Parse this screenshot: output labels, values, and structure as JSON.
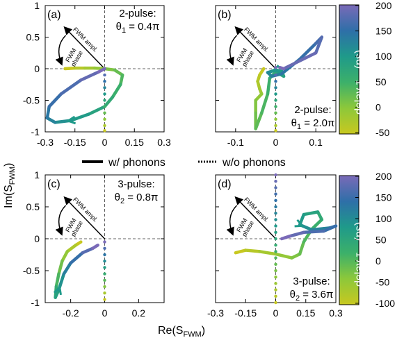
{
  "figure": {
    "ylabel": "Im(S",
    "ylabel_sub": "FWM",
    "ylabel_end": ")",
    "xlabel": "Re(S",
    "xlabel_sub": "FWM",
    "xlabel_end": ")",
    "legend": {
      "with": "w/ phonons",
      "without": "w/o phonons"
    },
    "arrow_amp": "FWM ampl.",
    "arrow_phase_1": "FWM",
    "arrow_phase_2": "phase",
    "colorbar_top": {
      "label": "delay τ",
      "sub": "12",
      "unit": " (ps)",
      "ticks": [
        "200",
        "150",
        "100",
        "50",
        "0",
        "-50"
      ]
    },
    "colorbar_bottom": {
      "label": "delay τ",
      "sub": "23",
      "unit": " (ps)",
      "ticks": [
        "200",
        "150",
        "100",
        "50",
        "0",
        "-50",
        "-100"
      ]
    }
  },
  "panels": [
    {
      "id": "a",
      "label": "(a)",
      "ann1": "2-pulse:",
      "ann2": "θ",
      "ann2_sub": "1",
      "ann2_val": " = 0.4π",
      "xticks": [
        "-0.3",
        "-0.15",
        "0",
        "0.15",
        "0.3"
      ],
      "yticks": [
        "1",
        "0.5",
        "0",
        "-0.5",
        "-1"
      ]
    },
    {
      "id": "b",
      "label": "(b)",
      "ann1": "2-pulse:",
      "ann2": "θ",
      "ann2_sub": "1",
      "ann2_val": " = 2.0π",
      "xticks": [
        "-0.1",
        "0",
        "0.1"
      ],
      "yticks": []
    },
    {
      "id": "c",
      "label": "(c)",
      "ann1": "3-pulse:",
      "ann2": "θ",
      "ann2_sub": "2",
      "ann2_val": " = 0.8π",
      "xticks": [
        "-0.2",
        "0",
        "0.2"
      ],
      "yticks": [
        "1",
        "0.5",
        "0",
        "-0.5",
        "-1"
      ]
    },
    {
      "id": "d",
      "label": "(d)",
      "ann1": "3-pulse:",
      "ann2": "θ",
      "ann2_sub": "2",
      "ann2_val": " = 3.6π",
      "xticks": [
        "-0.3",
        "-0.15",
        "0",
        "0.15",
        "0.3"
      ],
      "yticks": []
    }
  ],
  "chart_data": [
    {
      "type": "scatter",
      "panel": "a",
      "xlabel": "Re(S_FWM)",
      "ylabel": "Im(S_FWM)",
      "xlim": [
        -0.3,
        0.3
      ],
      "ylim": [
        -1,
        1
      ],
      "color_variable": "delay τ12 (ps)",
      "color_range": [
        -50,
        200
      ],
      "series": [
        {
          "name": "w/ phonons",
          "points": [
            [
              -0.2,
              0
            ],
            [
              -0.15,
              0.01
            ],
            [
              -0.1,
              0.01
            ],
            [
              -0.05,
              0.01
            ],
            [
              0,
              0
            ],
            [
              0.05,
              -0.02
            ],
            [
              0.09,
              -0.1
            ],
            [
              0.08,
              -0.25
            ],
            [
              0.04,
              -0.45
            ],
            [
              0,
              -0.6
            ],
            [
              -0.08,
              -0.72
            ],
            [
              -0.17,
              -0.82
            ],
            [
              -0.25,
              -0.85
            ],
            [
              -0.29,
              -0.78
            ],
            [
              -0.28,
              -0.6
            ],
            [
              -0.22,
              -0.4
            ],
            [
              -0.12,
              -0.18
            ],
            [
              -0.03,
              -0.05
            ],
            [
              0,
              0
            ]
          ]
        },
        {
          "name": "w/o phonons",
          "points": [
            [
              0,
              0
            ],
            [
              0,
              -0.1
            ],
            [
              0,
              -0.2
            ],
            [
              0,
              -0.3
            ],
            [
              0,
              -0.4
            ],
            [
              0,
              -0.5
            ],
            [
              0,
              -0.6
            ],
            [
              0,
              -0.7
            ],
            [
              0,
              -0.8
            ],
            [
              0,
              -0.9
            ],
            [
              0,
              -0.98
            ]
          ]
        }
      ]
    },
    {
      "type": "scatter",
      "panel": "b",
      "xlabel": "Re(S_FWM)",
      "ylabel": "Im(S_FWM)",
      "xlim": [
        -0.15,
        0.15
      ],
      "ylim": [
        -1,
        1
      ],
      "color_variable": "delay τ12 (ps)",
      "color_range": [
        -50,
        200
      ],
      "series": [
        {
          "name": "w/ phonons",
          "points": [
            [
              -0.03,
              0.0
            ],
            [
              -0.04,
              -0.1
            ],
            [
              -0.045,
              -0.2
            ],
            [
              -0.04,
              -0.32
            ],
            [
              -0.035,
              -0.4
            ],
            [
              -0.05,
              -0.5
            ],
            [
              -0.05,
              -0.7
            ],
            [
              -0.05,
              -0.95
            ],
            [
              -0.035,
              -0.7
            ],
            [
              -0.02,
              -0.4
            ],
            [
              -0.015,
              -0.15
            ],
            [
              0,
              -0.05
            ],
            [
              0.02,
              -0.12
            ],
            [
              0.015,
              -0.04
            ],
            [
              0,
              -0.02
            ],
            [
              -0.02,
              -0.06
            ],
            [
              -0.01,
              -0.12
            ],
            [
              0.015,
              -0.08
            ],
            [
              0.06,
              0.15
            ],
            [
              0.1,
              0.4
            ],
            [
              0.115,
              0.5
            ],
            [
              0.1,
              0.25
            ],
            [
              0.02,
              0.0
            ],
            [
              0.01,
              0.02
            ]
          ]
        },
        {
          "name": "w/o phonons",
          "points": [
            [
              0,
              0.02
            ],
            [
              0,
              -0.1
            ],
            [
              0,
              -0.2
            ],
            [
              0,
              -0.3
            ],
            [
              0,
              -0.4
            ],
            [
              0,
              -0.5
            ],
            [
              0,
              -0.6
            ],
            [
              0,
              -0.7
            ],
            [
              0,
              -0.8
            ],
            [
              0,
              -0.9
            ],
            [
              0,
              -0.98
            ]
          ]
        }
      ]
    },
    {
      "type": "scatter",
      "panel": "c",
      "xlabel": "Re(S_FWM)",
      "ylabel": "Im(S_FWM)",
      "xlim": [
        -0.35,
        0.35
      ],
      "ylim": [
        -1,
        1
      ],
      "color_variable": "delay τ23 (ps)",
      "color_range": [
        -100,
        200
      ],
      "series": [
        {
          "name": "w/ phonons",
          "points": [
            [
              -0.14,
              -0.05
            ],
            [
              -0.17,
              -0.1
            ],
            [
              -0.22,
              -0.2
            ],
            [
              -0.25,
              -0.35
            ],
            [
              -0.27,
              -0.55
            ],
            [
              -0.285,
              -0.75
            ],
            [
              -0.29,
              -0.92
            ],
            [
              -0.27,
              -0.8
            ],
            [
              -0.24,
              -0.55
            ],
            [
              -0.2,
              -0.38
            ],
            [
              -0.13,
              -0.22
            ],
            [
              -0.07,
              -0.15
            ],
            [
              -0.04,
              -0.1
            ]
          ]
        },
        {
          "name": "w/o phonons",
          "points": [
            [
              0,
              -0.05
            ],
            [
              0,
              -0.15
            ],
            [
              0,
              -0.25
            ],
            [
              0,
              -0.35
            ],
            [
              0,
              -0.45
            ],
            [
              0,
              -0.55
            ],
            [
              0,
              -0.65
            ],
            [
              0,
              -0.75
            ],
            [
              0,
              -0.85
            ],
            [
              0,
              -0.95
            ]
          ]
        }
      ]
    },
    {
      "type": "scatter",
      "panel": "d",
      "xlabel": "Re(S_FWM)",
      "ylabel": "Im(S_FWM)",
      "xlim": [
        -0.3,
        0.3
      ],
      "ylim": [
        -1,
        1
      ],
      "color_variable": "delay τ23 (ps)",
      "color_range": [
        -100,
        200
      ],
      "series": [
        {
          "name": "w/ phonons",
          "points": [
            [
              -0.2,
              -0.22
            ],
            [
              -0.15,
              -0.18
            ],
            [
              -0.08,
              -0.2
            ],
            [
              0,
              -0.24
            ],
            [
              0.08,
              -0.3
            ],
            [
              0.12,
              -0.24
            ],
            [
              0.14,
              -0.05
            ],
            [
              0.18,
              0.15
            ],
            [
              0.23,
              0.3
            ],
            [
              0.21,
              0.42
            ],
            [
              0.14,
              0.38
            ],
            [
              0.12,
              0.22
            ],
            [
              0.18,
              0.14
            ],
            [
              0.27,
              0.17
            ],
            [
              0.3,
              0.2
            ],
            [
              0.24,
              0.12
            ],
            [
              0.14,
              0.1
            ],
            [
              0.07,
              0.04
            ],
            [
              0.03,
              0.0
            ]
          ]
        },
        {
          "name": "w/o phonons",
          "points": [
            [
              0,
              1
            ],
            [
              0,
              0.9
            ],
            [
              0,
              0.8
            ],
            [
              0,
              0.7
            ],
            [
              0,
              0.6
            ],
            [
              0,
              0.5
            ],
            [
              0,
              0.4
            ],
            [
              0,
              0.3
            ],
            [
              0,
              0.2
            ],
            [
              0,
              0.1
            ],
            [
              0,
              0.0
            ],
            [
              0,
              -0.1
            ],
            [
              0,
              -0.2
            ],
            [
              0,
              -0.3
            ],
            [
              0,
              -0.4
            ],
            [
              0,
              -0.5
            ],
            [
              0,
              -0.6
            ],
            [
              0,
              -0.7
            ],
            [
              0,
              -0.8
            ],
            [
              0,
              -0.9
            ],
            [
              0,
              -1
            ]
          ]
        }
      ]
    }
  ]
}
